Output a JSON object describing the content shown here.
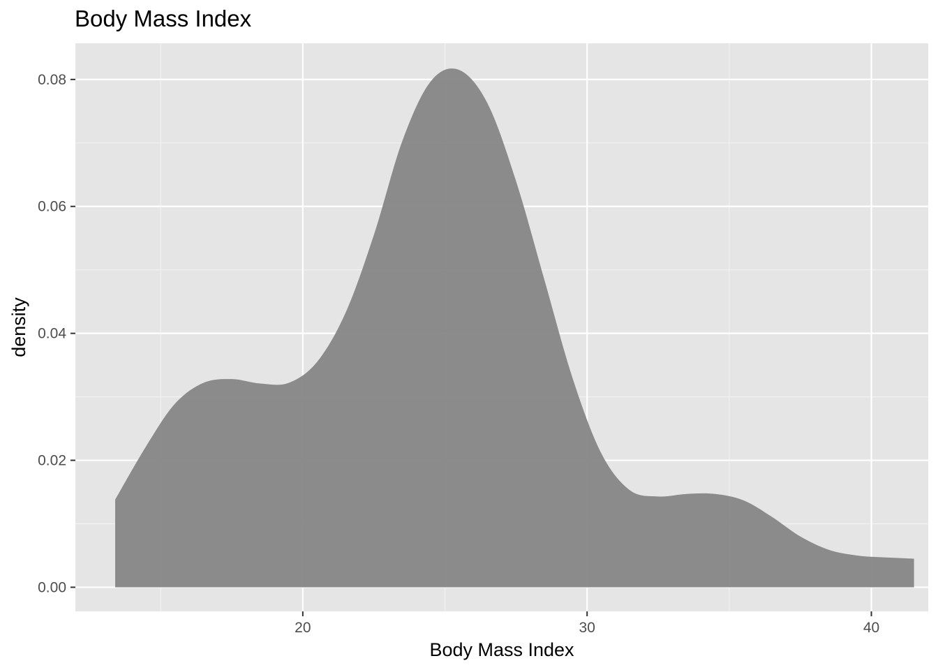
{
  "chart_data": {
    "type": "area",
    "title": "Body Mass Index",
    "xlabel": "Body Mass Index",
    "ylabel": "density",
    "xlim": [
      12.0,
      42.0
    ],
    "ylim": [
      -0.0038,
      0.0857
    ],
    "x_ticks": [
      20,
      30,
      40
    ],
    "x_tick_labels": [
      "20",
      "30",
      "40"
    ],
    "y_ticks": [
      0.0,
      0.02,
      0.04,
      0.06,
      0.08
    ],
    "y_tick_labels": [
      "0.00",
      "0.02",
      "0.04",
      "0.06",
      "0.08"
    ],
    "grid": true,
    "legend": "none",
    "fill_color": "#878787",
    "panel_color": "#e5e5e5",
    "x": [
      13.4,
      14.5,
      15.5,
      16.5,
      17.5,
      18.5,
      19.5,
      20.5,
      21.5,
      22.5,
      23.5,
      24.5,
      25.5,
      26.5,
      27.5,
      28.5,
      29.5,
      30.5,
      31.5,
      32.5,
      33.5,
      34.5,
      35.5,
      36.5,
      37.5,
      38.5,
      39.5,
      40.5,
      41.5
    ],
    "y": [
      0.0138,
      0.0223,
      0.0289,
      0.0322,
      0.0328,
      0.0321,
      0.0322,
      0.0355,
      0.0432,
      0.0555,
      0.0703,
      0.0797,
      0.0815,
      0.0762,
      0.064,
      0.0484,
      0.0328,
      0.0211,
      0.0153,
      0.0143,
      0.0147,
      0.0147,
      0.0137,
      0.0111,
      0.008,
      0.0059,
      0.005,
      0.0047,
      0.0045
    ]
  }
}
